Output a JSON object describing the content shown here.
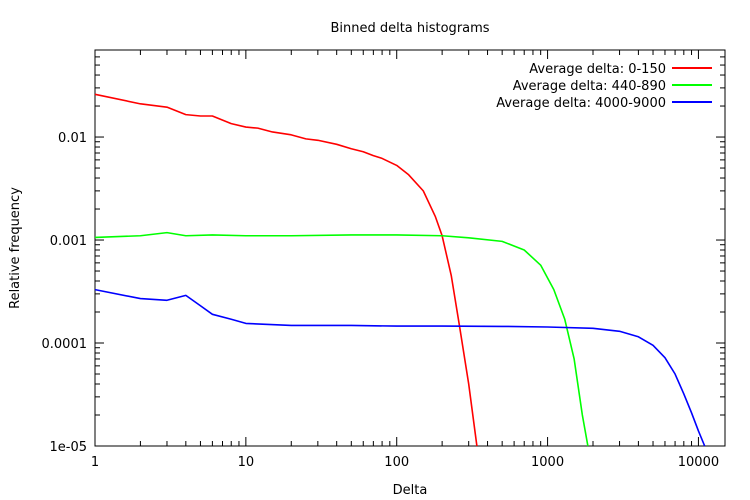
{
  "chart_data": {
    "type": "line",
    "title": "Binned delta histograms",
    "xlabel": "Delta",
    "ylabel": "Relative frequency",
    "xscale": "log",
    "yscale": "log",
    "xlim": [
      1,
      15000
    ],
    "ylim": [
      1e-05,
      0.07
    ],
    "grid": false,
    "legend_position": "top-right",
    "x_tick_labels": [
      {
        "value": 1,
        "label": "1"
      },
      {
        "value": 10,
        "label": "10"
      },
      {
        "value": 100,
        "label": "100"
      },
      {
        "value": 1000,
        "label": "1000"
      },
      {
        "value": 10000,
        "label": "10000"
      }
    ],
    "y_tick_labels": [
      {
        "value": 0.01,
        "label": "0.01"
      },
      {
        "value": 0.001,
        "label": "0.001"
      },
      {
        "value": 0.0001,
        "label": "0.0001"
      },
      {
        "value": 1e-05,
        "label": "1e-05"
      }
    ],
    "series": [
      {
        "name": "Average delta: 0-150",
        "color": "#ff0000",
        "points": [
          [
            1,
            0.026
          ],
          [
            2,
            0.021
          ],
          [
            3,
            0.0195
          ],
          [
            4,
            0.0165
          ],
          [
            5,
            0.016
          ],
          [
            6,
            0.016
          ],
          [
            8,
            0.0135
          ],
          [
            10,
            0.0125
          ],
          [
            12,
            0.0122
          ],
          [
            15,
            0.0112
          ],
          [
            20,
            0.0105
          ],
          [
            25,
            0.0096
          ],
          [
            30,
            0.0093
          ],
          [
            40,
            0.0085
          ],
          [
            50,
            0.0077
          ],
          [
            60,
            0.0072
          ],
          [
            70,
            0.0066
          ],
          [
            80,
            0.0062
          ],
          [
            100,
            0.0053
          ],
          [
            120,
            0.0043
          ],
          [
            150,
            0.003
          ],
          [
            180,
            0.0017
          ],
          [
            200,
            0.0011
          ],
          [
            230,
            0.00045
          ],
          [
            260,
            0.00015
          ],
          [
            300,
            4e-05
          ],
          [
            340,
            1e-05
          ]
        ]
      },
      {
        "name": "Average delta: 440-890",
        "color": "#00ff00",
        "points": [
          [
            1,
            0.00106
          ],
          [
            2,
            0.0011
          ],
          [
            3,
            0.00118
          ],
          [
            4,
            0.0011
          ],
          [
            6,
            0.00112
          ],
          [
            10,
            0.0011
          ],
          [
            20,
            0.0011
          ],
          [
            50,
            0.00112
          ],
          [
            100,
            0.00112
          ],
          [
            200,
            0.0011
          ],
          [
            300,
            0.00105
          ],
          [
            500,
            0.00097
          ],
          [
            700,
            0.0008
          ],
          [
            900,
            0.00057
          ],
          [
            1100,
            0.00033
          ],
          [
            1300,
            0.00017
          ],
          [
            1500,
            7e-05
          ],
          [
            1700,
            2e-05
          ],
          [
            1850,
            1e-05
          ]
        ]
      },
      {
        "name": "Average delta: 4000-9000",
        "color": "#0000ff",
        "points": [
          [
            1,
            0.00033
          ],
          [
            2,
            0.00027
          ],
          [
            3,
            0.00026
          ],
          [
            4,
            0.00029
          ],
          [
            5,
            0.00023
          ],
          [
            6,
            0.00019
          ],
          [
            8,
            0.00017
          ],
          [
            10,
            0.000155
          ],
          [
            20,
            0.000148
          ],
          [
            50,
            0.000148
          ],
          [
            100,
            0.000146
          ],
          [
            200,
            0.000146
          ],
          [
            500,
            0.000145
          ],
          [
            1000,
            0.000143
          ],
          [
            2000,
            0.000139
          ],
          [
            3000,
            0.00013
          ],
          [
            4000,
            0.000115
          ],
          [
            5000,
            9.5e-05
          ],
          [
            6000,
            7.2e-05
          ],
          [
            7000,
            5e-05
          ],
          [
            8000,
            3.2e-05
          ],
          [
            9000,
            2.1e-05
          ],
          [
            10000,
            1.4e-05
          ],
          [
            11000,
            1e-05
          ]
        ]
      }
    ]
  }
}
